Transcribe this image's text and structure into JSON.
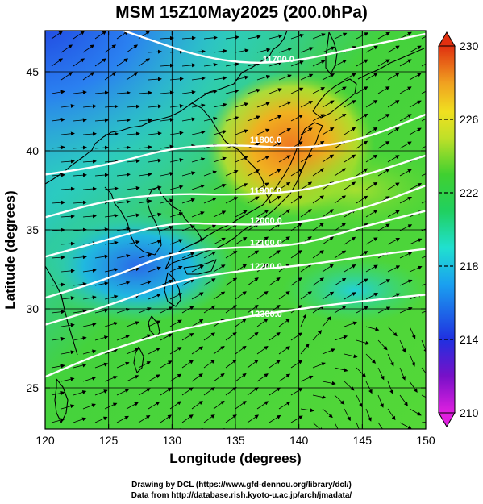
{
  "title": "MSM 15Z10May2025 (200.0hPa)",
  "xlabel": "Longitude (degrees)",
  "ylabel": "Latitude  (degrees)",
  "credits": [
    "Drawing by DCL (https://www.gfd-dennou.org/library/dcl/)",
    "Data from http://database.rish.kyoto-u.ac.jp/arch/jmadata/"
  ],
  "map": {
    "lon_range": [
      120,
      150
    ],
    "lat_range": [
      22.4,
      47.6
    ],
    "lon_ticks": [
      120,
      125,
      130,
      135,
      140,
      145,
      150
    ],
    "lat_ticks": [
      25,
      30,
      35,
      40,
      45
    ],
    "grid": true,
    "height_contours": [
      {
        "value": "11700.0",
        "points": [
          [
            120,
            49.2
          ],
          [
            124,
            48.2
          ],
          [
            128,
            47.1
          ],
          [
            132,
            46.0
          ],
          [
            136,
            45.5
          ],
          [
            140,
            45.7
          ],
          [
            144,
            46.4
          ],
          [
            150,
            47.4
          ]
        ]
      },
      {
        "value": "11800.0",
        "points": [
          [
            120,
            38.5
          ],
          [
            125,
            39.1
          ],
          [
            130,
            40.2
          ],
          [
            135,
            40.4
          ],
          [
            140,
            40.1
          ],
          [
            145,
            40.7
          ],
          [
            150,
            42.3
          ]
        ]
      },
      {
        "value": "11900.0",
        "points": [
          [
            120,
            35.8
          ],
          [
            125,
            36.9
          ],
          [
            130,
            37.3
          ],
          [
            135,
            37.2
          ],
          [
            140,
            37.4
          ],
          [
            145,
            38.4
          ],
          [
            150,
            39.7
          ]
        ]
      },
      {
        "value": "12000.0",
        "points": [
          [
            120,
            33.3
          ],
          [
            125,
            34.4
          ],
          [
            130,
            35.5
          ],
          [
            135,
            35.3
          ],
          [
            140,
            35.4
          ],
          [
            145,
            36.3
          ],
          [
            150,
            37.8
          ]
        ]
      },
      {
        "value": "12100.0",
        "points": [
          [
            120,
            30.7
          ],
          [
            125,
            31.9
          ],
          [
            130,
            33.6
          ],
          [
            135,
            33.9
          ],
          [
            140,
            34.0
          ],
          [
            145,
            35.2
          ],
          [
            150,
            36.2
          ]
        ]
      },
      {
        "value": "12200.0",
        "points": [
          [
            120,
            29.0
          ],
          [
            125,
            30.2
          ],
          [
            130,
            31.7
          ],
          [
            135,
            32.4
          ],
          [
            140,
            32.7
          ],
          [
            145,
            33.3
          ],
          [
            150,
            33.8
          ]
        ]
      },
      {
        "value": "12300.0",
        "points": [
          [
            120,
            25.7
          ],
          [
            125,
            27.4
          ],
          [
            130,
            28.6
          ],
          [
            135,
            29.4
          ],
          [
            140,
            30.0
          ],
          [
            145,
            30.5
          ],
          [
            150,
            30.9
          ]
        ]
      }
    ]
  },
  "colorbar": {
    "min": 210,
    "max": 230,
    "labels": [
      "230",
      "226",
      "222",
      "218",
      "214",
      "210"
    ],
    "colors": [
      "#e020e0",
      "#7810c8",
      "#2030e0",
      "#1aa0f0",
      "#20e0d0",
      "#20d060",
      "#40d030",
      "#c0e028",
      "#f0e020",
      "#f0a020",
      "#e03010"
    ]
  },
  "colors": {
    "contour": "#ffffff",
    "coast": "#000000",
    "vector": "#000000"
  }
}
